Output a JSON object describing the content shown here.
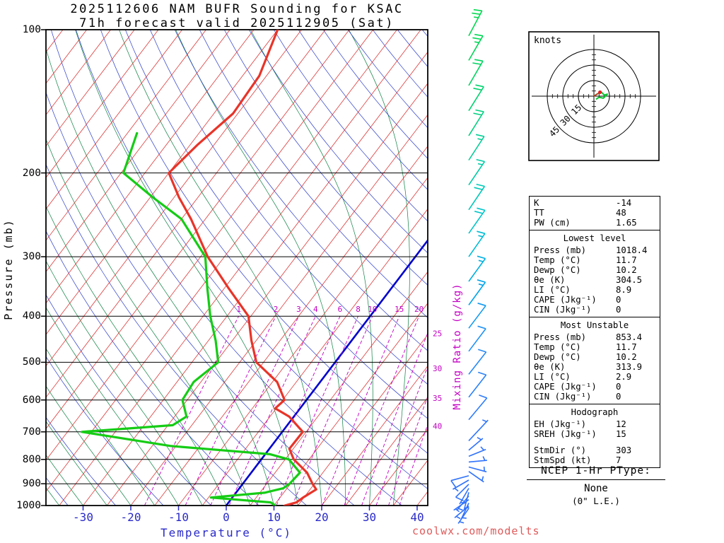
{
  "title": {
    "line1": "2025112606 NAM BUFR Sounding for KSAC",
    "line2": "71h forecast valid 2025112905 (Sat)"
  },
  "axes": {
    "pressure_label": "Pressure (mb)",
    "temperature_label": "Temperature (°C)",
    "mixing_ratio_label": "Mixing Ratio (g/kg)",
    "pressure_ticks": [
      100,
      200,
      300,
      400,
      500,
      600,
      700,
      800,
      900,
      1000
    ],
    "temperature_ticks": [
      -30,
      -20,
      -10,
      0,
      10,
      20,
      30,
      40
    ]
  },
  "chart_data": {
    "type": "line",
    "subtype": "skew-t-log-p",
    "title": "2025112606 NAM BUFR Sounding for KSAC",
    "subtitle": "71h forecast valid 2025112905 (Sat)",
    "xlabel": "Temperature (°C)",
    "ylabel": "Pressure (mb)",
    "x_ticks_c": [
      -30,
      -20,
      -10,
      0,
      10,
      20,
      30,
      40
    ],
    "pressure_ticks_mb": [
      100,
      200,
      300,
      400,
      500,
      600,
      700,
      800,
      900,
      1000
    ],
    "ylim_mb": [
      1000,
      100
    ],
    "grid": true,
    "isotherms": {
      "start": -115,
      "end": 45,
      "step": 5
    },
    "dry_adiabats": {
      "start": 240,
      "end": 460,
      "step": 10
    },
    "moist_adiabats": {
      "start": -35,
      "end": 35,
      "step": 5
    },
    "mixing_ratio_lines": [
      1,
      2,
      3,
      4,
      6,
      8,
      10,
      15,
      20,
      25,
      30,
      35,
      40
    ],
    "colors": {
      "isotherm": "#dd3838",
      "zero_isotherm": "#0000cd",
      "dry_adiabat": "#2a3cc8",
      "moist_adiabat": "#0c8040",
      "mixing_ratio": "#c400c4",
      "pressure_line": "#000000",
      "temperature": "#e83428",
      "dewpoint": "#15cc15"
    },
    "series": [
      {
        "name": "Temperature",
        "color": "#e83428",
        "units": "°C vs mb",
        "points": [
          [
            1018,
            11.7
          ],
          [
            1000,
            12.3
          ],
          [
            985,
            14.2
          ],
          [
            960,
            14.9
          ],
          [
            925,
            16.3
          ],
          [
            900,
            14.6
          ],
          [
            853,
            11.7
          ],
          [
            800,
            6.8
          ],
          [
            760,
            4.2
          ],
          [
            700,
            4.3
          ],
          [
            650,
            -1
          ],
          [
            625,
            -5.2
          ],
          [
            600,
            -4.6
          ],
          [
            550,
            -9
          ],
          [
            500,
            -16.5
          ],
          [
            450,
            -21
          ],
          [
            400,
            -25.5
          ],
          [
            350,
            -34
          ],
          [
            300,
            -43.5
          ],
          [
            250,
            -53
          ],
          [
            225,
            -59
          ],
          [
            200,
            -65
          ],
          [
            175,
            -63.5
          ],
          [
            150,
            -61
          ],
          [
            125,
            -61.5
          ],
          [
            100,
            -65
          ]
        ]
      },
      {
        "name": "Dewpoint",
        "color": "#15cc15",
        "units": "°C vs mb",
        "points": [
          [
            1018,
            10.2
          ],
          [
            1000,
            10.3
          ],
          [
            985,
            8.8
          ],
          [
            962,
            -4.5
          ],
          [
            940,
            6
          ],
          [
            920,
            9.2
          ],
          [
            900,
            9.8
          ],
          [
            853,
            10.2
          ],
          [
            800,
            5.8
          ],
          [
            780,
            1
          ],
          [
            750,
            -21
          ],
          [
            700,
            -42
          ],
          [
            678,
            -24
          ],
          [
            650,
            -22.5
          ],
          [
            600,
            -26
          ],
          [
            550,
            -26.5
          ],
          [
            500,
            -24.5
          ],
          [
            450,
            -28.5
          ],
          [
            400,
            -33.5
          ],
          [
            350,
            -38.5
          ],
          [
            300,
            -44
          ],
          [
            250,
            -55
          ],
          [
            225,
            -64.5
          ],
          [
            200,
            -74.5
          ],
          [
            165,
            -78
          ]
        ]
      }
    ],
    "wind_barbs": [
      {
        "p": 103,
        "ang": 62,
        "kt": 25,
        "c": "#00d84e"
      },
      {
        "p": 116,
        "ang": 60,
        "kt": 25,
        "c": "#00d655"
      },
      {
        "p": 131,
        "ang": 60,
        "kt": 20,
        "c": "#00d460"
      },
      {
        "p": 148,
        "ang": 58,
        "kt": 20,
        "c": "#00d26e"
      },
      {
        "p": 167,
        "ang": 58,
        "kt": 20,
        "c": "#00d080"
      },
      {
        "p": 188,
        "ang": 57,
        "kt": 15,
        "c": "#00ce93"
      },
      {
        "p": 212,
        "ang": 56,
        "kt": 15,
        "c": "#00cca6"
      },
      {
        "p": 239,
        "ang": 56,
        "kt": 20,
        "c": "#00c9b8"
      },
      {
        "p": 268,
        "ang": 55,
        "kt": 20,
        "c": "#00c5c8"
      },
      {
        "p": 300,
        "ang": 55,
        "kt": 15,
        "c": "#00bcd4"
      },
      {
        "p": 338,
        "ang": 54,
        "kt": 15,
        "c": "#00b0e0"
      },
      {
        "p": 379,
        "ang": 54,
        "kt": 15,
        "c": "#00a4ea"
      },
      {
        "p": 424,
        "ang": 53,
        "kt": 10,
        "c": "#129af0"
      },
      {
        "p": 474,
        "ang": 53,
        "kt": 10,
        "c": "#1f92f4"
      },
      {
        "p": 530,
        "ang": 52,
        "kt": 10,
        "c": "#268af6"
      },
      {
        "p": 592,
        "ang": 52,
        "kt": 10,
        "c": "#2b82f8"
      },
      {
        "p": 660,
        "ang": 50,
        "kt": 10,
        "c": "#2e7cfa"
      },
      {
        "p": 731,
        "ang": 47,
        "kt": 5,
        "c": "#2f76fb"
      },
      {
        "p": 765,
        "ang": 40,
        "kt": 5,
        "len": 26,
        "c": "#2f72fc"
      },
      {
        "p": 788,
        "ang": 22,
        "kt": 5,
        "len": 26,
        "c": "#2f72fc"
      },
      {
        "p": 810,
        "ang": 5,
        "kt": 5,
        "len": 26,
        "c": "#2f72fc"
      },
      {
        "p": 830,
        "ang": -15,
        "kt": 5,
        "len": 26,
        "c": "#2f72fc"
      },
      {
        "p": 848,
        "ang": -35,
        "kt": 5,
        "len": 26,
        "c": "#2f72fc"
      },
      {
        "p": 866,
        "ang": 195,
        "kt": 10,
        "len": 26,
        "c": "#2f72fc"
      },
      {
        "p": 884,
        "ang": 210,
        "kt": 5,
        "len": 26,
        "c": "#2f72fc"
      },
      {
        "p": 902,
        "ang": 225,
        "kt": 10,
        "len": 26,
        "c": "#2f72fc"
      },
      {
        "p": 920,
        "ang": 240,
        "kt": 5,
        "len": 26,
        "c": "#2f72fc"
      },
      {
        "p": 938,
        "ang": 255,
        "kt": 5,
        "len": 26,
        "c": "#2f72fc"
      },
      {
        "p": 955,
        "ang": 230,
        "kt": 5,
        "len": 26,
        "c": "#2f72fc"
      },
      {
        "p": 972,
        "ang": 215,
        "kt": 5,
        "len": 26,
        "c": "#2f72fc"
      },
      {
        "p": 988,
        "ang": 245,
        "kt": 5,
        "len": 26,
        "c": "#2f72fc"
      },
      {
        "p": 1002,
        "ang": 220,
        "kt": 5,
        "len": 26,
        "c": "#2f72fc"
      },
      {
        "p": 1014,
        "ang": 235,
        "kt": 5,
        "len": 26,
        "c": "#2f72fc"
      }
    ],
    "hodograph": {
      "unit_label": "knots",
      "rings_kt": [
        15,
        30,
        45
      ],
      "trace_color": "#0cc832",
      "storm_color": "#e02020",
      "trace_kt": [
        [
          0,
          0
        ],
        [
          3,
          2
        ],
        [
          7,
          4
        ],
        [
          10,
          1
        ],
        [
          13,
          2
        ],
        [
          9,
          -2
        ],
        [
          5,
          -1
        ],
        [
          2,
          -3
        ]
      ],
      "storm_motion_kt": [
        5.9,
        3.8
      ]
    }
  },
  "stats": {
    "sections": [
      {
        "title": null,
        "rows": [
          [
            "K",
            "-14"
          ],
          [
            "TT",
            "48"
          ],
          [
            "PW (cm)",
            "1.65"
          ]
        ]
      },
      {
        "title": "Lowest level",
        "rows": [
          [
            "Press (mb)",
            "1018.4"
          ],
          [
            "Temp (°C)",
            "11.7"
          ],
          [
            "Dewp (°C)",
            "10.2"
          ],
          [
            "θe (K)",
            "304.5"
          ],
          [
            "LI (°C)",
            "8.9"
          ],
          [
            "CAPE (Jkg⁻¹)",
            "0"
          ],
          [
            "CIN (Jkg⁻¹)",
            "0"
          ]
        ]
      },
      {
        "title": "Most Unstable",
        "rows": [
          [
            "Press (mb)",
            "853.4"
          ],
          [
            "Temp (°C)",
            "11.7"
          ],
          [
            "Dewp (°C)",
            "10.2"
          ],
          [
            "θe (K)",
            "313.9"
          ],
          [
            "LI (°C)",
            "2.9"
          ],
          [
            "CAPE (Jkg⁻¹)",
            "0"
          ],
          [
            "CIN (Jkg⁻¹)",
            "0"
          ]
        ]
      },
      {
        "title": "Hodograph",
        "rows": [
          [
            "EH (Jkg⁻¹)",
            "12"
          ],
          [
            "SREH (Jkg⁻¹)",
            "15"
          ],
          [
            "",
            ""
          ],
          [
            "StmDir (°)",
            "303"
          ],
          [
            "StmSpd (kt)",
            "7"
          ]
        ]
      }
    ]
  },
  "ptype": {
    "heading": "NCEP 1-Hr PType:",
    "value": "None",
    "detail": "(0\" L.E.)"
  },
  "footer": {
    "watermark": "coolwx.com/modelts"
  }
}
